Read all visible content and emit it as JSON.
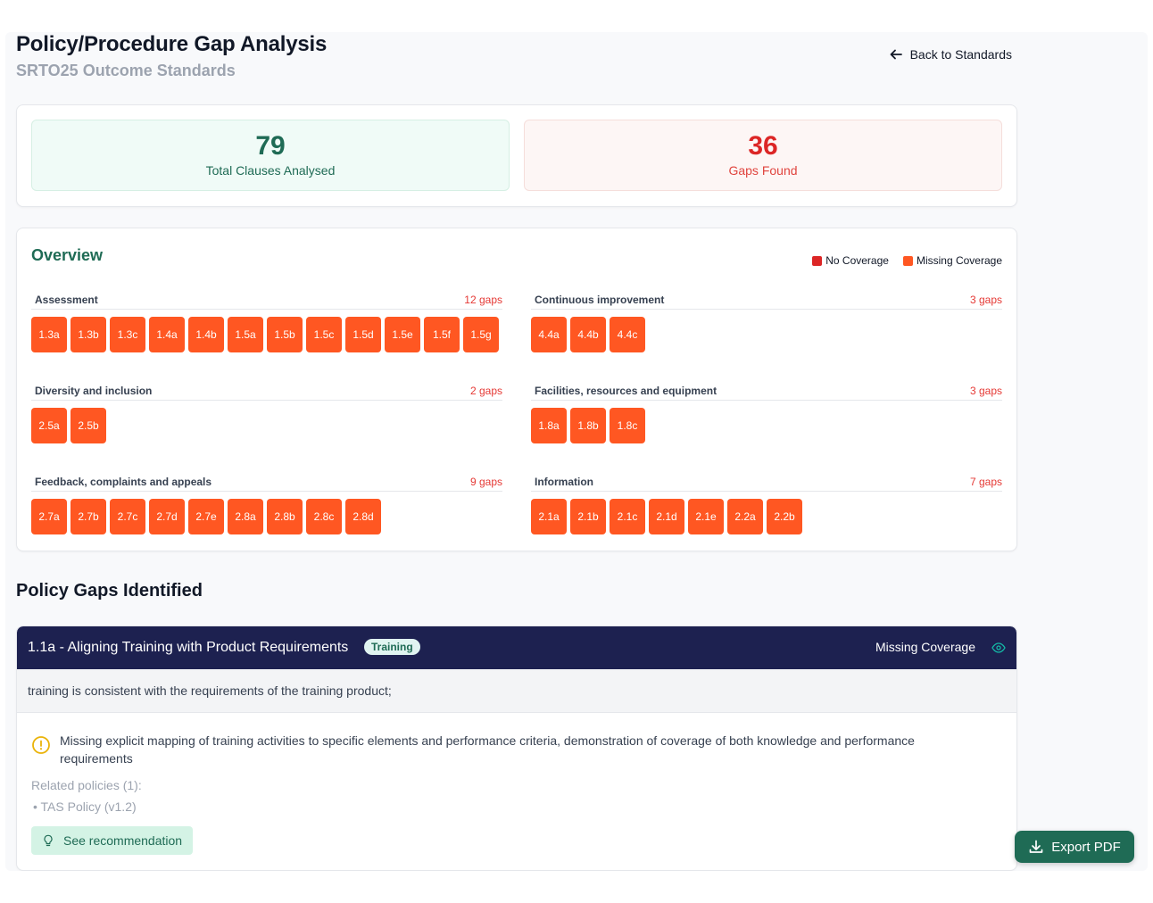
{
  "header": {
    "title": "Policy/Procedure Gap Analysis",
    "subtitle": "SRTO25 Outcome Standards",
    "back_label": "Back to Standards"
  },
  "stats": {
    "total_value": "79",
    "total_label": "Total Clauses Analysed",
    "gaps_value": "36",
    "gaps_label": "Gaps Found"
  },
  "overview": {
    "title": "Overview",
    "legend": [
      {
        "label": "No Coverage",
        "color": "#dc2626"
      },
      {
        "label": "Missing Coverage",
        "color": "#ff5722"
      }
    ],
    "groups": [
      {
        "name": "Assessment",
        "count": "12 gaps",
        "items": [
          "1.3a",
          "1.3b",
          "1.3c",
          "1.4a",
          "1.4b",
          "1.5a",
          "1.5b",
          "1.5c",
          "1.5d",
          "1.5e",
          "1.5f",
          "1.5g"
        ]
      },
      {
        "name": "Continuous improvement",
        "count": "3 gaps",
        "items": [
          "4.4a",
          "4.4b",
          "4.4c"
        ]
      },
      {
        "name": "Diversity and inclusion",
        "count": "2 gaps",
        "items": [
          "2.5a",
          "2.5b"
        ]
      },
      {
        "name": "Facilities, resources and equipment",
        "count": "3 gaps",
        "items": [
          "1.8a",
          "1.8b",
          "1.8c"
        ]
      },
      {
        "name": "Feedback, complaints and appeals",
        "count": "9 gaps",
        "items": [
          "2.7a",
          "2.7b",
          "2.7c",
          "2.7d",
          "2.7e",
          "2.8a",
          "2.8b",
          "2.8c",
          "2.8d"
        ]
      },
      {
        "name": "Information",
        "count": "7 gaps",
        "items": [
          "2.1a",
          "2.1b",
          "2.1c",
          "2.1d",
          "2.1e",
          "2.2a",
          "2.2b"
        ]
      }
    ]
  },
  "gaps_section": {
    "title": "Policy Gaps Identified"
  },
  "gap": {
    "title": "1.1a - Aligning Training with Product Requirements",
    "tag": "Training",
    "coverage": "Missing Coverage",
    "description": "training is consistent with the requirements of the training product;",
    "warning": "Missing explicit mapping of training activities to specific elements and performance criteria, demonstration of coverage of both knowledge and performance requirements",
    "related_label": "Related policies (1):",
    "related_policies": [
      "TAS Policy (v1.2)"
    ],
    "recommendation_label": "See recommendation"
  },
  "export_label": "Export PDF"
}
